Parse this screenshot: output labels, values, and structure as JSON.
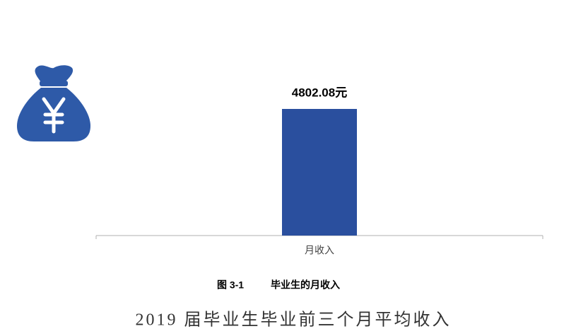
{
  "chart_data": {
    "type": "bar",
    "categories": [
      "月收入"
    ],
    "values": [
      4802.08
    ],
    "value_labels": [
      "4802.08元"
    ],
    "color": "#2a4f9e"
  },
  "caption": {
    "number": "图 3-1",
    "text": "毕业生的月收入"
  },
  "footer": {
    "title": "2019 届毕业生毕业前三个月平均收入"
  }
}
